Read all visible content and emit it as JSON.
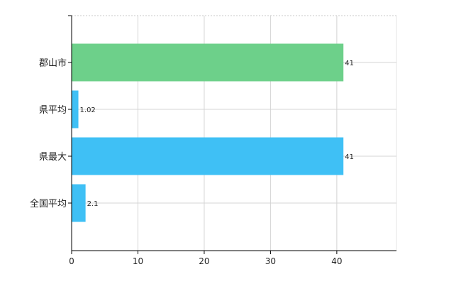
{
  "chart_data": {
    "type": "bar",
    "orientation": "horizontal",
    "categories": [
      "郡山市",
      "県平均",
      "県最大",
      "全国平均"
    ],
    "values": [
      41,
      1.02,
      41,
      2.1
    ],
    "data_labels": [
      "41",
      "1.02",
      "41",
      "2.1"
    ],
    "bar_colors": [
      "#6dd08a",
      "#3fc0f5",
      "#3fc0f5",
      "#3fc0f5"
    ],
    "xlim": [
      0,
      49
    ],
    "x_ticks": [
      0,
      10,
      20,
      30,
      40
    ],
    "grid": true,
    "title": "",
    "xlabel": "",
    "ylabel": ""
  }
}
